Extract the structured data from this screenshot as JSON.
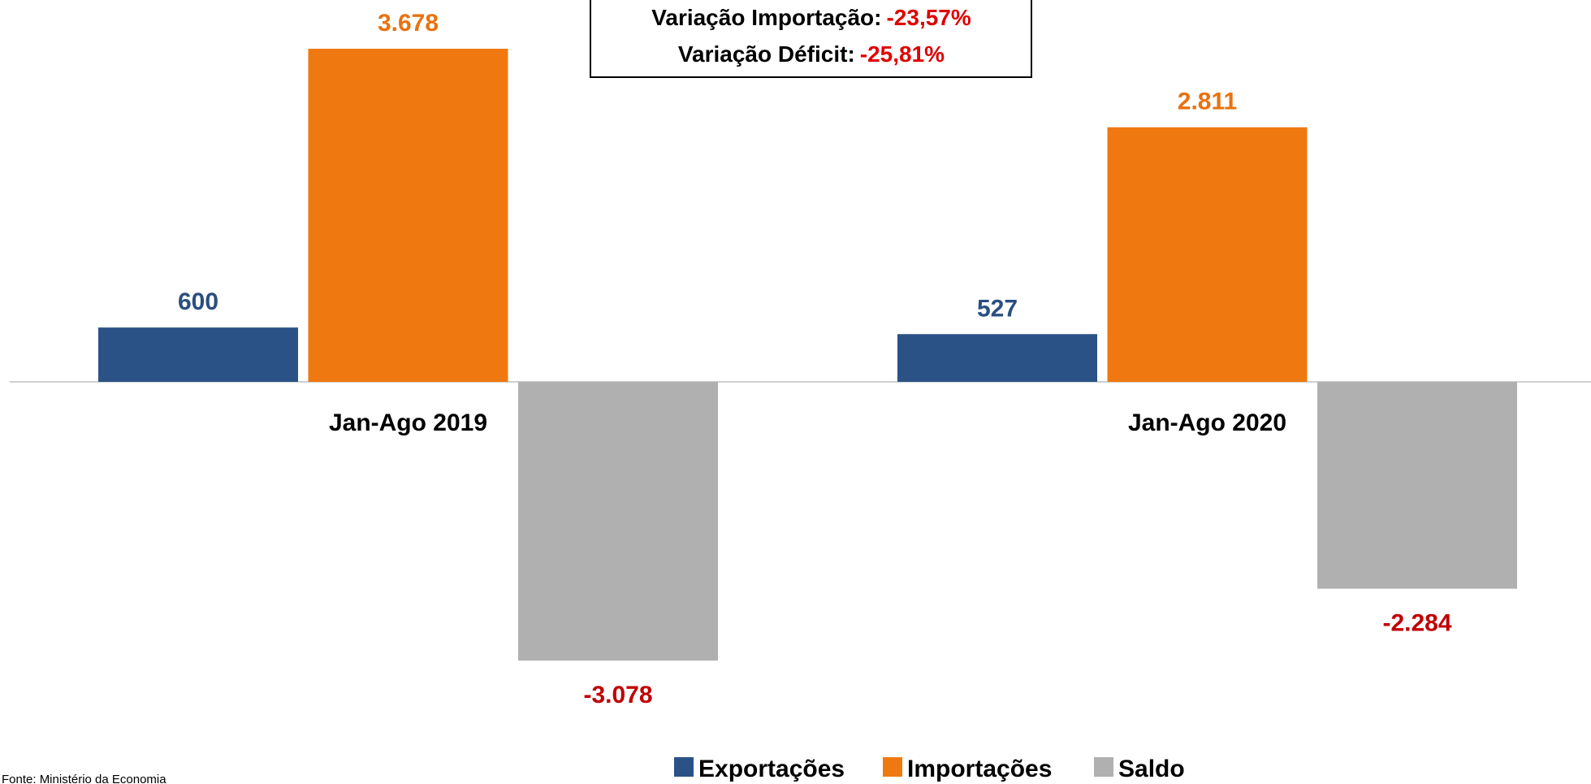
{
  "chart_data": {
    "type": "bar",
    "categories": [
      "Jan-Ago 2019",
      "Jan-Ago 2020"
    ],
    "series": [
      {
        "name": "Exportações",
        "color": "#2a5286",
        "label_color": "#2a4f80",
        "values": [
          600,
          527
        ],
        "value_labels": [
          "600",
          "527"
        ]
      },
      {
        "name": "Importações",
        "color": "#f07810",
        "label_color": "#e8720f",
        "values": [
          3678,
          2811
        ],
        "value_labels": [
          "3.678",
          "2.811"
        ]
      },
      {
        "name": "Saldo",
        "color": "#b0b0b0",
        "label_color": "#c00000",
        "values": [
          -3078,
          -2284
        ],
        "value_labels": [
          "-3.078",
          "-2.284"
        ]
      }
    ],
    "annotations": [
      {
        "label": "Variação Importação:",
        "value": "-23,57%"
      },
      {
        "label": "Variação Déficit:",
        "value": "-25,81%"
      }
    ],
    "annotation_value_color": "#e00000",
    "legend": "bottom",
    "source": "Fonte: Ministério da Economia"
  }
}
